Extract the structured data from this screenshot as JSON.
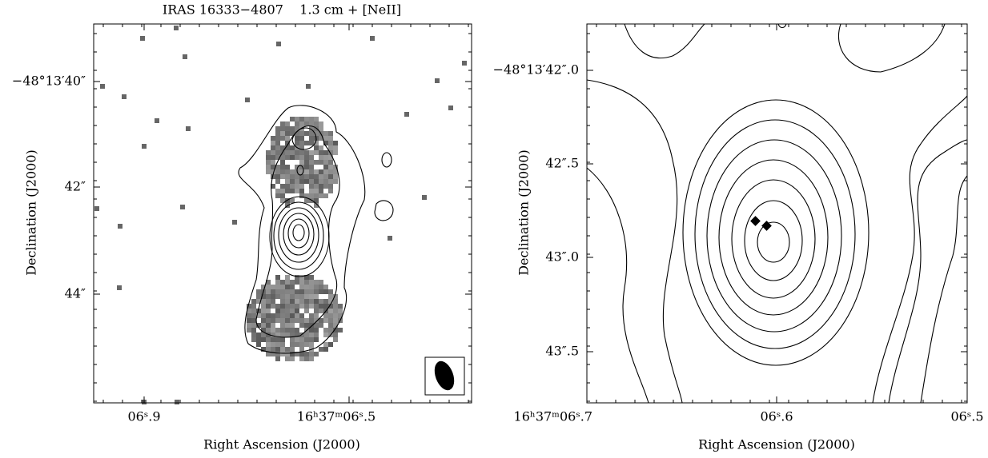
{
  "panels": [
    {
      "title": "IRAS 16333−4807    1.3 cm + [NeII]",
      "xlabel": "Right Ascension (J2000)",
      "ylabel": "Declination (J2000)",
      "xticks": [
        "06ˢ.9",
        "16ʰ37ᵐ06ˢ.5"
      ],
      "yticks": [
        "−48°13′40″",
        "42″",
        "44″"
      ]
    },
    {
      "xlabel": "Right Ascension (J2000)",
      "ylabel": "Declination (J2000)",
      "xticks": [
        "16ʰ37ᵐ06ˢ.7",
        "06ˢ.6",
        "06ˢ.5"
      ],
      "yticks": [
        "−48°13′42″.0",
        "42″.5",
        "43″.0",
        "43″.5"
      ]
    }
  ]
}
